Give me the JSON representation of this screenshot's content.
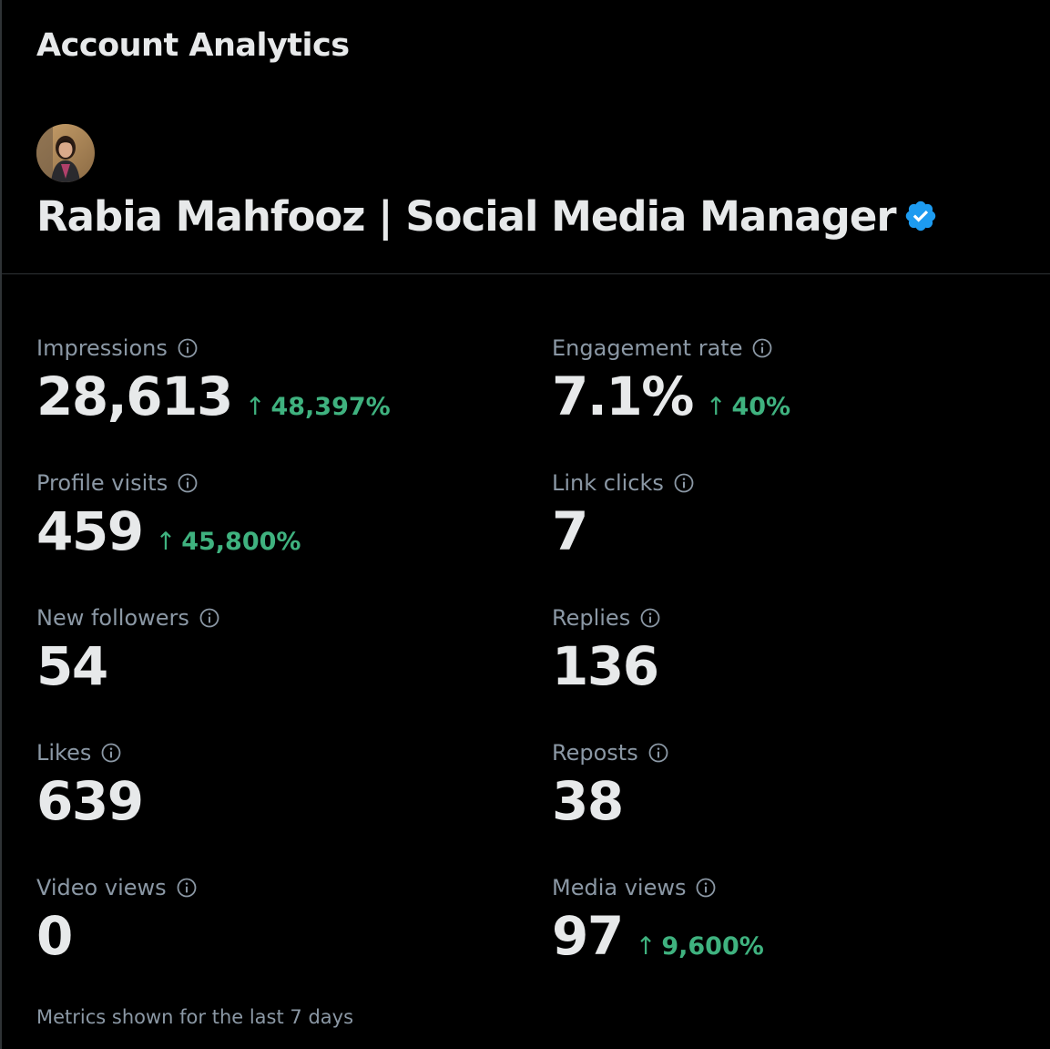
{
  "header": {
    "title": "Account Analytics"
  },
  "account": {
    "name": "Rabia Mahfooz | Social Media Manager",
    "avatar_icon": "profile-photo",
    "verified_icon": "verified-badge-icon",
    "verified_color": "#1d9bf0"
  },
  "metrics": [
    {
      "label": "Impressions",
      "value": "28,613",
      "change": "48,397%"
    },
    {
      "label": "Engagement rate",
      "value": "7.1%",
      "change": "40%"
    },
    {
      "label": "Profile visits",
      "value": "459",
      "change": "45,800%"
    },
    {
      "label": "Link clicks",
      "value": "7",
      "change": ""
    },
    {
      "label": "New followers",
      "value": "54",
      "change": ""
    },
    {
      "label": "Replies",
      "value": "136",
      "change": ""
    },
    {
      "label": "Likes",
      "value": "639",
      "change": ""
    },
    {
      "label": "Reposts",
      "value": "38",
      "change": ""
    },
    {
      "label": "Video views",
      "value": "0",
      "change": ""
    },
    {
      "label": "Media views",
      "value": "97",
      "change": "9,600%"
    }
  ],
  "icons": {
    "info": "info-icon",
    "trend_up": "arrow-up-icon",
    "trend_arrow_glyph": "↑"
  },
  "colors": {
    "background": "#000000",
    "text_primary": "#e7e9ea",
    "text_secondary": "#8b98a5",
    "positive": "#3fb27f",
    "divider": "#2f3336"
  },
  "footer": {
    "note": "Metrics shown for the last 7 days"
  }
}
